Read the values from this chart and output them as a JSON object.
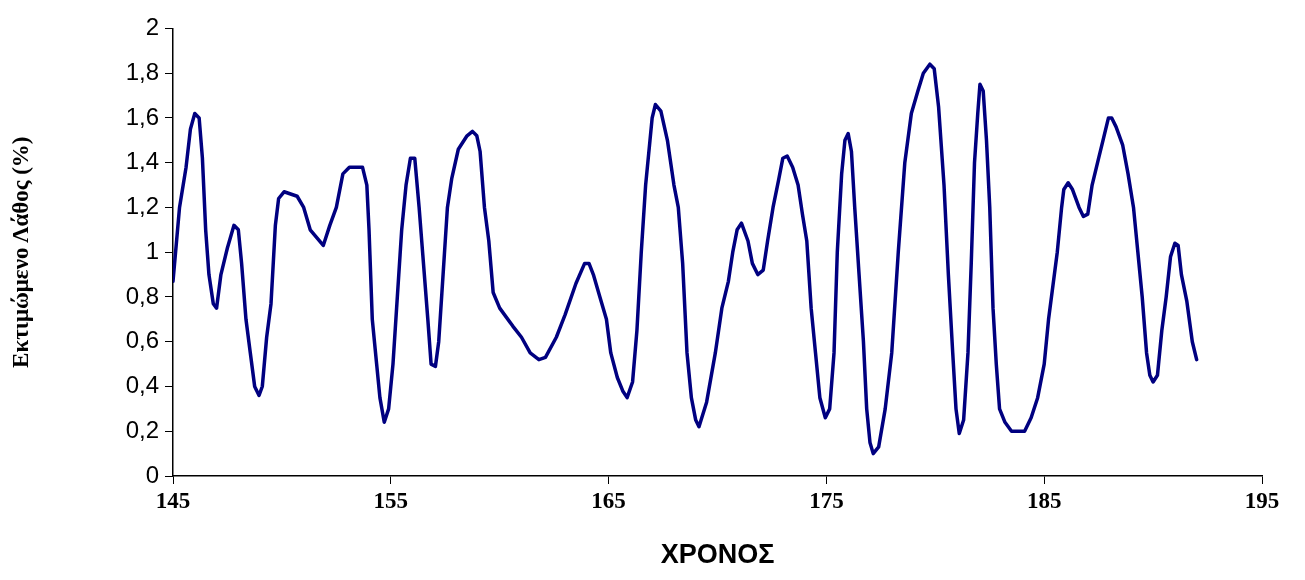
{
  "chart_data": {
    "type": "line",
    "xlabel": "ΧΡΟΝΟΣ",
    "ylabel": "Εκτιμώμενο Λάθος (%)",
    "xlim": [
      145,
      195
    ],
    "xticks": [
      145,
      155,
      165,
      175,
      185,
      195
    ],
    "ylim": [
      0,
      2
    ],
    "yticks": [
      0,
      {
        "value": 0.2,
        "label": "0,2"
      },
      {
        "value": 0.4,
        "label": "0,4"
      },
      {
        "value": 0.6,
        "label": "0,6"
      },
      {
        "value": 0.8,
        "label": "0,8"
      },
      1,
      {
        "value": 1.2,
        "label": "1,2"
      },
      {
        "value": 1.4,
        "label": "1,4"
      },
      {
        "value": 1.6,
        "label": "1,6"
      },
      {
        "value": 1.8,
        "label": "1,8"
      },
      2
    ],
    "grid": false,
    "legend": false,
    "marker": "none",
    "line_style": "solid",
    "x": [
      145.0,
      145.3,
      145.6,
      145.8,
      146.0,
      146.2,
      146.35,
      146.5,
      146.65,
      146.85,
      147.0,
      147.2,
      147.5,
      147.8,
      148.0,
      148.15,
      148.35,
      148.55,
      148.75,
      148.95,
      149.1,
      149.3,
      149.5,
      149.7,
      149.85,
      150.1,
      150.7,
      151.0,
      151.3,
      151.9,
      152.2,
      152.5,
      152.8,
      153.1,
      153.7,
      153.9,
      154.0,
      154.15,
      154.35,
      154.5,
      154.7,
      154.9,
      155.1,
      155.3,
      155.5,
      155.7,
      155.9,
      156.1,
      156.3,
      156.5,
      156.7,
      156.85,
      157.05,
      157.2,
      157.4,
      157.6,
      157.8,
      158.1,
      158.5,
      158.75,
      158.95,
      159.1,
      159.3,
      159.5,
      159.7,
      160.0,
      160.6,
      161.0,
      161.4,
      161.8,
      162.1,
      162.6,
      163.0,
      163.5,
      163.9,
      164.1,
      164.3,
      164.6,
      164.9,
      165.1,
      165.4,
      165.65,
      165.85,
      166.1,
      166.3,
      166.5,
      166.7,
      166.9,
      167.0,
      167.15,
      167.4,
      167.7,
      168.0,
      168.2,
      168.4,
      168.6,
      168.8,
      169.0,
      169.15,
      169.5,
      169.9,
      170.2,
      170.5,
      170.7,
      170.9,
      171.1,
      171.4,
      171.6,
      171.85,
      172.1,
      172.3,
      172.55,
      172.8,
      173.0,
      173.2,
      173.45,
      173.7,
      173.9,
      174.1,
      174.3,
      174.5,
      174.7,
      174.95,
      175.15,
      175.35,
      175.5,
      175.7,
      175.85,
      176.0,
      176.15,
      176.3,
      176.5,
      176.7,
      176.85,
      177.0,
      177.15,
      177.4,
      177.7,
      178.0,
      178.3,
      178.6,
      178.9,
      179.2,
      179.45,
      179.75,
      179.95,
      180.15,
      180.4,
      180.6,
      180.8,
      180.95,
      181.1,
      181.3,
      181.5,
      181.65,
      181.8,
      181.95,
      182.05,
      182.2,
      182.35,
      182.5,
      182.65,
      182.8,
      182.95,
      183.2,
      183.5,
      184.1,
      184.4,
      184.7,
      185.0,
      185.2,
      185.4,
      185.6,
      185.8,
      185.9,
      186.1,
      186.3,
      186.6,
      186.8,
      187.0,
      187.2,
      187.5,
      187.7,
      187.95,
      188.1,
      188.3,
      188.6,
      188.85,
      189.1,
      189.3,
      189.5,
      189.7,
      189.85,
      190.0,
      190.2,
      190.4,
      190.6,
      190.8,
      191.0,
      191.15,
      191.3,
      191.55,
      191.8,
      192.0
    ],
    "series": [
      {
        "color": "#000080",
        "values": [
          0.87,
          1.2,
          1.38,
          1.55,
          1.62,
          1.6,
          1.42,
          1.1,
          0.9,
          0.77,
          0.75,
          0.9,
          1.02,
          1.12,
          1.1,
          0.95,
          0.7,
          0.55,
          0.4,
          0.36,
          0.4,
          0.62,
          0.77,
          1.12,
          1.24,
          1.27,
          1.25,
          1.2,
          1.1,
          1.03,
          1.12,
          1.2,
          1.35,
          1.38,
          1.38,
          1.3,
          1.1,
          0.7,
          0.5,
          0.35,
          0.24,
          0.3,
          0.5,
          0.8,
          1.1,
          1.3,
          1.42,
          1.42,
          1.2,
          0.95,
          0.7,
          0.5,
          0.49,
          0.6,
          0.9,
          1.2,
          1.33,
          1.46,
          1.52,
          1.54,
          1.52,
          1.45,
          1.2,
          1.05,
          0.82,
          0.75,
          0.67,
          0.62,
          0.55,
          0.52,
          0.53,
          0.62,
          0.72,
          0.86,
          0.95,
          0.95,
          0.9,
          0.8,
          0.7,
          0.55,
          0.44,
          0.38,
          0.35,
          0.42,
          0.65,
          1.0,
          1.3,
          1.5,
          1.6,
          1.66,
          1.63,
          1.5,
          1.3,
          1.2,
          0.95,
          0.55,
          0.35,
          0.25,
          0.22,
          0.33,
          0.55,
          0.75,
          0.87,
          1.0,
          1.1,
          1.13,
          1.05,
          0.95,
          0.9,
          0.92,
          1.05,
          1.2,
          1.32,
          1.42,
          1.43,
          1.38,
          1.3,
          1.17,
          1.05,
          0.75,
          0.55,
          0.35,
          0.26,
          0.3,
          0.55,
          1.0,
          1.35,
          1.5,
          1.53,
          1.45,
          1.2,
          0.9,
          0.6,
          0.3,
          0.15,
          0.1,
          0.13,
          0.3,
          0.55,
          1.0,
          1.4,
          1.62,
          1.72,
          1.8,
          1.84,
          1.82,
          1.65,
          1.3,
          0.9,
          0.55,
          0.3,
          0.19,
          0.25,
          0.55,
          0.95,
          1.4,
          1.62,
          1.75,
          1.72,
          1.5,
          1.2,
          0.75,
          0.5,
          0.3,
          0.24,
          0.2,
          0.2,
          0.26,
          0.35,
          0.5,
          0.7,
          0.85,
          1.0,
          1.2,
          1.28,
          1.31,
          1.28,
          1.2,
          1.16,
          1.17,
          1.3,
          1.42,
          1.5,
          1.6,
          1.6,
          1.56,
          1.48,
          1.35,
          1.2,
          1.0,
          0.8,
          0.55,
          0.45,
          0.42,
          0.45,
          0.65,
          0.8,
          0.98,
          1.04,
          1.03,
          0.9,
          0.78,
          0.6,
          0.52
        ]
      }
    ]
  }
}
